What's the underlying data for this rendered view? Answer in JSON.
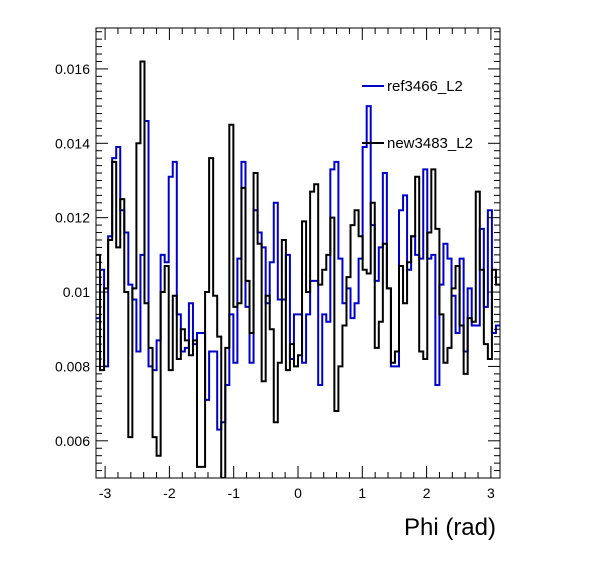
{
  "chart_data": {
    "type": "line",
    "title": "",
    "xlabel": "Phi (rad)",
    "ylabel": "",
    "xlim": [
      -3.1416,
      3.1416
    ],
    "ylim": [
      0.005,
      0.0171
    ],
    "x_ticks": [
      -3,
      -2,
      -1,
      0,
      1,
      2,
      3
    ],
    "x_tick_labels": [
      "-3",
      "-2",
      "-1",
      "0",
      "1",
      "2",
      "3"
    ],
    "y_ticks": [
      0.006,
      0.008,
      0.01,
      0.012,
      0.014,
      0.016
    ],
    "y_tick_labels": [
      "0.006",
      "0.008",
      "0.01",
      "0.012",
      "0.014",
      "0.016"
    ],
    "grid": false,
    "legend_position": "top-right",
    "bins": 100,
    "series": [
      {
        "name": "ref3466_L2",
        "color": "#0000cc",
        "values": [
          0.0093,
          0.0106,
          0.008,
          0.0115,
          0.0136,
          0.0139,
          0.0122,
          0.0116,
          0.0102,
          0.0098,
          0.0084,
          0.011,
          0.0146,
          0.008,
          0.0079,
          0.0087,
          0.011,
          0.0108,
          0.0131,
          0.0135,
          0.0094,
          0.0084,
          0.0085,
          0.0097,
          0.0086,
          0.0089,
          0.0089,
          0.0071,
          0.0084,
          0.0084,
          0.0063,
          0.0065,
          0.0075,
          0.0094,
          0.0081,
          0.0109,
          0.0135,
          0.0096,
          0.0081,
          0.0122,
          0.0116,
          0.0112,
          0.0097,
          0.0108,
          0.0124,
          0.0098,
          0.0098,
          0.011,
          0.0082,
          0.0094,
          0.0094,
          0.0081,
          0.0094,
          0.0103,
          0.0103,
          0.0075,
          0.0094,
          0.0092,
          0.0133,
          0.0135,
          0.0109,
          0.0097,
          0.0101,
          0.0093,
          0.0097,
          0.0109,
          0.0139,
          0.015,
          0.0118,
          0.0103,
          0.0112,
          0.0132,
          0.0101,
          0.008,
          0.008,
          0.0122,
          0.0126,
          0.0106,
          0.0115,
          0.011,
          0.0109,
          0.0133,
          0.0109,
          0.011,
          0.0075,
          0.0102,
          0.0113,
          0.0109,
          0.0099,
          0.0089,
          0.0109,
          0.0084,
          0.0101,
          0.0091,
          0.0091,
          0.0117,
          0.0096,
          0.0122,
          0.0089,
          0.0091
        ]
      },
      {
        "name": "new3483_L2",
        "color": "#000000",
        "values": [
          0.011,
          0.0079,
          0.0101,
          0.0114,
          0.0135,
          0.0112,
          0.0125,
          0.01,
          0.0061,
          0.0101,
          0.014,
          0.0162,
          0.0097,
          0.0085,
          0.0061,
          0.0056,
          0.01,
          0.0107,
          0.0079,
          0.0099,
          0.0082,
          0.009,
          0.0087,
          0.0083,
          0.0087,
          0.0053,
          0.0053,
          0.01,
          0.0136,
          0.0099,
          0.0088,
          0.0048,
          0.0085,
          0.0145,
          0.0096,
          0.0097,
          0.0128,
          0.0103,
          0.0089,
          0.0132,
          0.0113,
          0.0076,
          0.0099,
          0.009,
          0.0065,
          0.0081,
          0.0114,
          0.0079,
          0.0086,
          0.008,
          0.0083,
          0.0119,
          0.01,
          0.0127,
          0.0129,
          0.0102,
          0.0106,
          0.011,
          0.012,
          0.0068,
          0.008,
          0.0091,
          0.0104,
          0.0118,
          0.0122,
          0.0115,
          0.0106,
          0.0105,
          0.0124,
          0.0085,
          0.0092,
          0.0113,
          0.0101,
          0.0081,
          0.0084,
          0.0107,
          0.0097,
          0.0108,
          0.0115,
          0.0131,
          0.0084,
          0.0082,
          0.0116,
          0.0133,
          0.0117,
          0.0094,
          0.0081,
          0.0085,
          0.0101,
          0.0107,
          0.0091,
          0.0078,
          0.0093,
          0.0092,
          0.0127,
          0.0106,
          0.0086,
          0.0082,
          0.0106,
          0.0102
        ]
      }
    ]
  }
}
